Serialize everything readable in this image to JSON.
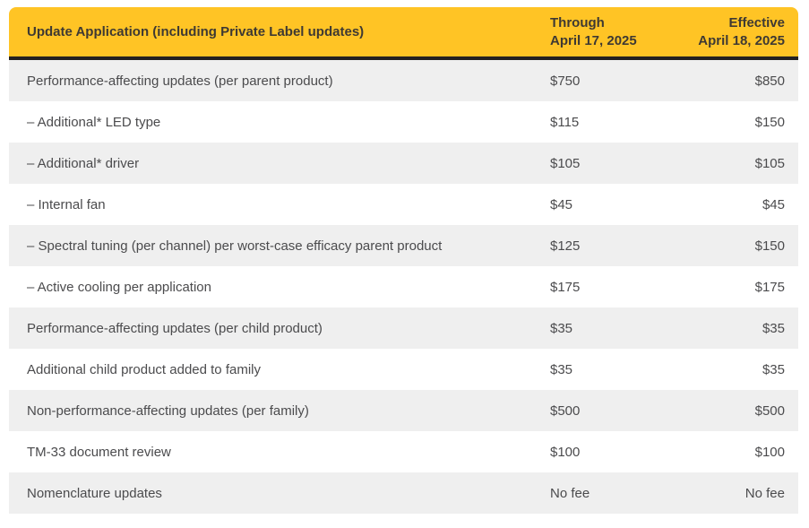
{
  "table": {
    "header": {
      "title": "Update Application (including Private Label updates)",
      "through_col": {
        "line1": "Through",
        "line2": "April 17, 2025"
      },
      "effective_col": {
        "line1": "Effective",
        "line2": "April 18, 2025"
      }
    },
    "rows": [
      {
        "label": "Performance-affecting updates (per parent product)",
        "through": "$750",
        "effective": "$850"
      },
      {
        "label": "– Additional* LED type",
        "through": "$115",
        "effective": "$150"
      },
      {
        "label": "– Additional* driver",
        "through": "$105",
        "effective": "$105"
      },
      {
        "label": "– Internal fan",
        "through": "$45",
        "effective": "$45"
      },
      {
        "label": "– Spectral tuning (per channel) per worst-case efficacy parent product",
        "through": "$125",
        "effective": "$150"
      },
      {
        "label": "– Active cooling per application",
        "through": "$175",
        "effective": "$175"
      },
      {
        "label": "Performance-affecting updates (per child product)",
        "through": "$35",
        "effective": "$35"
      },
      {
        "label": "Additional child product added to family",
        "through": "$35",
        "effective": "$35"
      },
      {
        "label": "Non-performance-affecting updates (per family)",
        "through": "$500",
        "effective": "$500"
      },
      {
        "label": "TM-33 document review",
        "through": "$100",
        "effective": "$100"
      },
      {
        "label": "Nomenclature updates",
        "through": "No fee",
        "effective": "No fee"
      }
    ],
    "colors": {
      "header_bg": "#FFC425",
      "header_text": "#3E3933",
      "row_alt_bg": "#EFEFEF",
      "row_bg": "#FFFFFF",
      "body_text": "#4B4B4D",
      "divider": "#232020",
      "page_bg": "#FFFFFF"
    }
  }
}
